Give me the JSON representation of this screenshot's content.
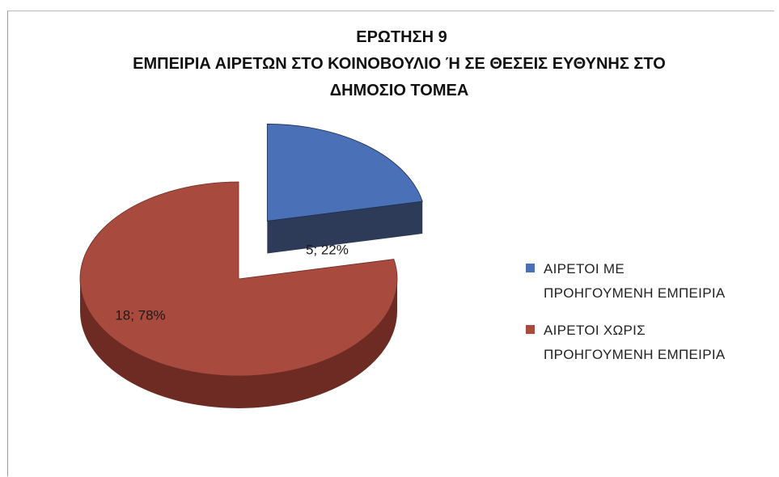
{
  "chart_data": {
    "type": "pie",
    "title_lines": [
      "ΕΡΩΤΗΣΗ 9",
      "ΕΜΠΕΙΡΙΑ ΑΙΡΕΤΩΝ  ΣΤΟ ΚΟΙΝΟΒΟΥΛΙΟ Ή ΣΕ ΘΕΣΕΙΣ ΕΥΘΥΝΗΣ ΣΤΟ",
      "ΔΗΜΟΣΙΟ ΤΟΜΕΑ"
    ],
    "slices": [
      {
        "legend_line1": "ΑΙΡΕΤΟΙ ΜΕ",
        "legend_line2": "ΠΡΟΗΓΟΥΜΕΝΗ ΕΜΠΕΙΡΙΑ",
        "value": 5,
        "percent": 22,
        "data_label": "5; 22%",
        "color": "#4a70b8",
        "side_color": "#1c2a4a",
        "exploded": true
      },
      {
        "legend_line1": "ΑΙΡΕΤΟΙ ΧΩΡΙΣ",
        "legend_line2": "ΠΡΟΗΓΟΥΜΕΝΗ ΕΜΠΕΙΡΙΑ",
        "value": 18,
        "percent": 78,
        "data_label": "18; 78%",
        "color": "#a94a3f",
        "side_color": "#6e2b24",
        "exploded": false
      }
    ],
    "legend_position": "right",
    "style": "3d-pie"
  }
}
